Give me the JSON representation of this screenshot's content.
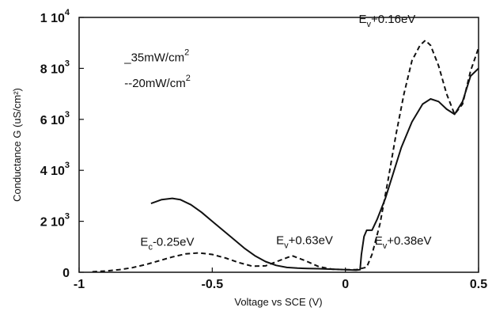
{
  "chart_data": {
    "type": "line",
    "xlabel": "Voltage vs SCE (V)",
    "ylabel": "Conductance G (uS/cm²)",
    "xlim": [
      -1,
      0.5
    ],
    "ylim": [
      0,
      10000
    ],
    "xticks": [
      {
        "value": -1,
        "label": "-1"
      },
      {
        "value": -0.5,
        "label": "-0.5"
      },
      {
        "value": 0,
        "label": "0"
      },
      {
        "value": 0.5,
        "label": "0.5"
      }
    ],
    "yticks": [
      {
        "value": 0,
        "mant": "0",
        "exp": ""
      },
      {
        "value": 2000,
        "mant": "2 10",
        "exp": "3"
      },
      {
        "value": 4000,
        "mant": "4 10",
        "exp": "3"
      },
      {
        "value": 6000,
        "mant": "6 10",
        "exp": "3"
      },
      {
        "value": 8000,
        "mant": "8 10",
        "exp": "3"
      },
      {
        "value": 10000,
        "mant": "1 10",
        "exp": "4"
      }
    ],
    "legend": {
      "placement": "top-left",
      "items": [
        {
          "marker": "_",
          "text": "35mW/cm",
          "sup": "2"
        },
        {
          "marker": "--",
          "text": "20mW/cm",
          "sup": "2"
        }
      ]
    },
    "series": [
      {
        "style": "solid",
        "x": [
          -0.73,
          -0.69,
          -0.65,
          -0.62,
          -0.58,
          -0.54,
          -0.5,
          -0.46,
          -0.42,
          -0.38,
          -0.34,
          -0.3,
          -0.26,
          -0.22,
          -0.18,
          -0.14,
          -0.1,
          -0.05,
          0.0,
          0.04,
          0.055,
          0.06,
          0.07,
          0.08,
          0.1,
          0.12,
          0.15,
          0.18,
          0.21,
          0.25,
          0.29,
          0.32,
          0.35,
          0.38,
          0.41,
          0.44,
          0.47,
          0.5
        ],
        "y": [
          2700,
          2850,
          2900,
          2850,
          2650,
          2350,
          2000,
          1650,
          1300,
          950,
          650,
          420,
          270,
          190,
          160,
          150,
          140,
          120,
          100,
          80,
          100,
          700,
          1400,
          1650,
          1650,
          2100,
          2900,
          3900,
          4900,
          5900,
          6600,
          6800,
          6700,
          6400,
          6200,
          6700,
          7700,
          8000
        ]
      },
      {
        "style": "dashed",
        "x": [
          -0.95,
          -0.9,
          -0.85,
          -0.8,
          -0.75,
          -0.7,
          -0.65,
          -0.6,
          -0.55,
          -0.5,
          -0.45,
          -0.4,
          -0.35,
          -0.3,
          -0.25,
          -0.2,
          -0.15,
          -0.1,
          -0.05,
          0.0,
          0.04,
          0.08,
          0.1,
          0.13,
          0.16,
          0.19,
          0.22,
          0.25,
          0.28,
          0.3,
          0.32,
          0.35,
          0.38,
          0.41,
          0.44,
          0.47,
          0.5
        ],
        "y": [
          20,
          50,
          100,
          180,
          300,
          450,
          600,
          720,
          760,
          700,
          560,
          380,
          240,
          250,
          450,
          650,
          450,
          220,
          120,
          100,
          100,
          200,
          700,
          1900,
          3600,
          5400,
          7000,
          8300,
          8900,
          9100,
          8900,
          8100,
          7000,
          6200,
          6600,
          7900,
          8800
        ]
      }
    ],
    "annotations": [
      {
        "base": "E",
        "sub": "v",
        "text": "+0.16eV",
        "x": 0.05,
        "y": 9780
      },
      {
        "base": "E",
        "sub": "c",
        "text": "-0.25eV",
        "x": -0.77,
        "y": 1040
      },
      {
        "base": "E",
        "sub": "v",
        "text": "+0.63eV",
        "x": -0.26,
        "y": 1100
      },
      {
        "base": "E",
        "sub": "v",
        "text": "+0.38eV",
        "x": 0.11,
        "y": 1080
      }
    ]
  }
}
